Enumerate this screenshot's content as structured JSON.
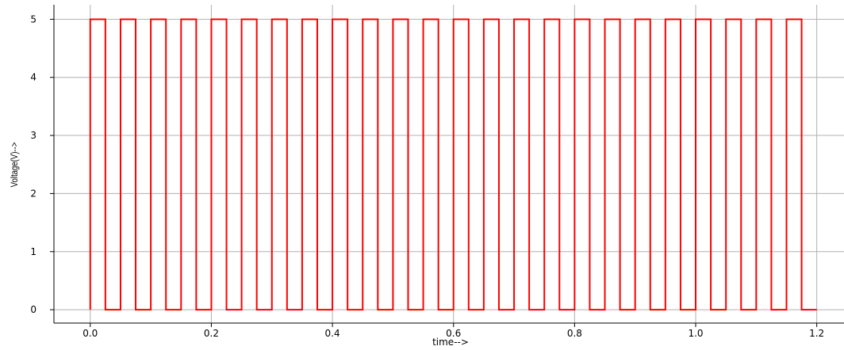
{
  "chart_data": {
    "type": "line",
    "title": "",
    "xlabel": "time-->",
    "ylabel": "Voltage(V)-->",
    "xlim": [
      -0.06,
      1.245
    ],
    "ylim": [
      -0.23,
      5.25
    ],
    "xticks": [
      0.0,
      0.2,
      0.4,
      0.6,
      0.8,
      1.0,
      1.2
    ],
    "xtick_labels": [
      "0.0",
      "0.2",
      "0.4",
      "0.6",
      "0.8",
      "1.0",
      "1.2"
    ],
    "yticks": [
      0,
      1,
      2,
      3,
      4,
      5
    ],
    "ytick_labels": [
      "0",
      "1",
      "2",
      "3",
      "4",
      "5"
    ],
    "grid": true,
    "series": [
      {
        "color": "#ff0000",
        "signal": "square-wave",
        "low": 0,
        "high": 5,
        "period": 0.05,
        "duty_cycle": 0.5,
        "x_start": 0.0,
        "x_end": 1.2
      }
    ]
  }
}
